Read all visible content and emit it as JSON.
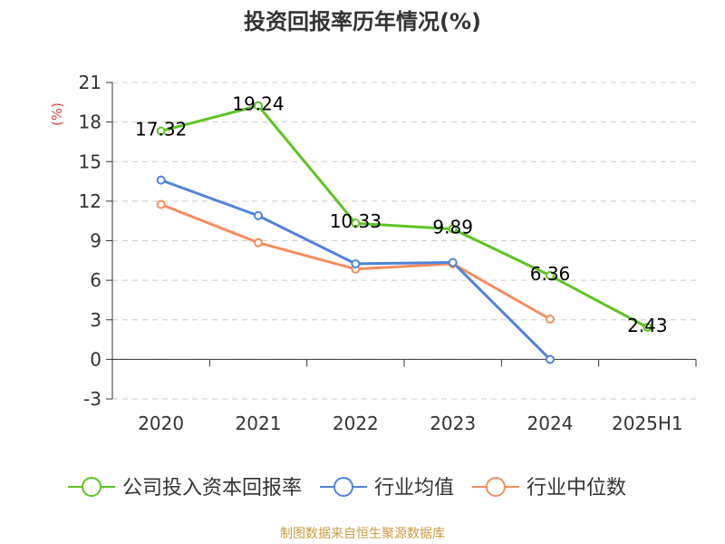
{
  "chart_data": {
    "type": "line",
    "title": "投资回报率历年情况(%)",
    "ylabel": "(%)",
    "categories": [
      "2020",
      "2021",
      "2022",
      "2023",
      "2024",
      "2025H1"
    ],
    "ylim": [
      -3,
      21
    ],
    "yticks": [
      -3,
      0,
      3,
      6,
      9,
      12,
      15,
      18,
      21
    ],
    "grid": true,
    "legend_position": "bottom",
    "series": [
      {
        "name": "公司投入资本回报率",
        "color": "#5ec421",
        "values": [
          17.32,
          19.24,
          10.33,
          9.89,
          6.36,
          2.43
        ],
        "labels": [
          "17.32",
          "19.24",
          "10.33",
          "9.89",
          "6.36",
          "2.43"
        ]
      },
      {
        "name": "行业均值",
        "color": "#4f84dc",
        "values": [
          13.6,
          10.9,
          7.25,
          7.35,
          0,
          null
        ]
      },
      {
        "name": "行业中位数",
        "color": "#f78c5c",
        "values": [
          11.75,
          8.85,
          6.85,
          7.25,
          3.05,
          null
        ]
      }
    ]
  },
  "colors": {
    "ylabel": "#e0433b",
    "source": "#c89b40",
    "axis": "#333333",
    "grid": "#cccccc"
  },
  "source": "制图数据来自恒生聚源数据库"
}
